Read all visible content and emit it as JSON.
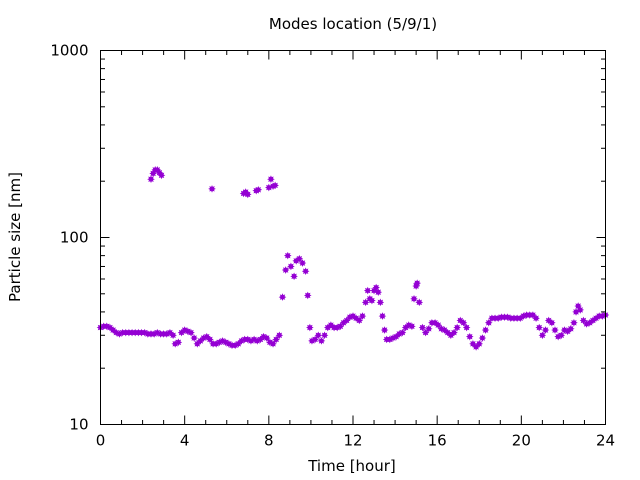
{
  "chart_data": {
    "type": "scatter",
    "title": "Modes location (5/9/1)",
    "xlabel": "Time [hour]",
    "ylabel": "Particle size [nm]",
    "xlim": [
      0,
      24
    ],
    "ylim": [
      10,
      1000
    ],
    "yscale": "log",
    "xticks": [
      "0",
      "4",
      "8",
      "12",
      "16",
      "20",
      "24"
    ],
    "yticks": [
      "10",
      "100",
      "1000"
    ],
    "marker_color": "#9400d3",
    "grid": false,
    "legend": "none",
    "points": [
      [
        0.0,
        33
      ],
      [
        0.15,
        33.5
      ],
      [
        0.3,
        33.5
      ],
      [
        0.45,
        33
      ],
      [
        0.6,
        32
      ],
      [
        0.75,
        31
      ],
      [
        0.9,
        30.5
      ],
      [
        1.05,
        31
      ],
      [
        1.2,
        31
      ],
      [
        1.35,
        31
      ],
      [
        1.5,
        31
      ],
      [
        1.65,
        31
      ],
      [
        1.8,
        31
      ],
      [
        1.95,
        31
      ],
      [
        2.1,
        31
      ],
      [
        2.25,
        30.5
      ],
      [
        2.4,
        30.5
      ],
      [
        2.55,
        30.5
      ],
      [
        2.7,
        31
      ],
      [
        2.85,
        30.5
      ],
      [
        3.0,
        30.5
      ],
      [
        3.15,
        30.5
      ],
      [
        3.3,
        31
      ],
      [
        3.45,
        30
      ],
      [
        3.55,
        27
      ],
      [
        3.7,
        27.5
      ],
      [
        3.85,
        31
      ],
      [
        4.0,
        32
      ],
      [
        4.15,
        31.5
      ],
      [
        4.3,
        31
      ],
      [
        4.45,
        29
      ],
      [
        4.6,
        27
      ],
      [
        4.75,
        28
      ],
      [
        4.9,
        29
      ],
      [
        5.05,
        29.5
      ],
      [
        5.2,
        28.5
      ],
      [
        5.35,
        27
      ],
      [
        5.5,
        27
      ],
      [
        5.65,
        27.5
      ],
      [
        5.8,
        28
      ],
      [
        5.95,
        27.5
      ],
      [
        6.1,
        27
      ],
      [
        6.25,
        26.5
      ],
      [
        6.4,
        26.5
      ],
      [
        6.55,
        27
      ],
      [
        6.7,
        28
      ],
      [
        6.85,
        28.5
      ],
      [
        7.0,
        28.5
      ],
      [
        7.15,
        28
      ],
      [
        7.3,
        28.5
      ],
      [
        7.45,
        28
      ],
      [
        7.6,
        28.5
      ],
      [
        7.75,
        29.5
      ],
      [
        7.9,
        29
      ],
      [
        8.05,
        27.5
      ],
      [
        8.2,
        27
      ],
      [
        8.35,
        28.5
      ],
      [
        8.5,
        30
      ],
      [
        8.65,
        48
      ],
      [
        8.8,
        67
      ],
      [
        8.9,
        80
      ],
      [
        9.05,
        70
      ],
      [
        9.2,
        62
      ],
      [
        9.3,
        75
      ],
      [
        9.45,
        77
      ],
      [
        9.6,
        73
      ],
      [
        9.75,
        66
      ],
      [
        9.85,
        49
      ],
      [
        9.95,
        33
      ],
      [
        10.05,
        28
      ],
      [
        10.2,
        28.5
      ],
      [
        10.35,
        30
      ],
      [
        10.5,
        28
      ],
      [
        10.65,
        30
      ],
      [
        10.8,
        33
      ],
      [
        10.95,
        34
      ],
      [
        11.1,
        33
      ],
      [
        11.25,
        33
      ],
      [
        11.4,
        33.5
      ],
      [
        11.55,
        35
      ],
      [
        11.7,
        36
      ],
      [
        11.85,
        37.5
      ],
      [
        12.0,
        38
      ],
      [
        12.15,
        37
      ],
      [
        12.3,
        36
      ],
      [
        12.45,
        38
      ],
      [
        12.6,
        45
      ],
      [
        12.7,
        52
      ],
      [
        12.8,
        47
      ],
      [
        12.9,
        46
      ],
      [
        13.0,
        52
      ],
      [
        13.1,
        54
      ],
      [
        13.2,
        51
      ],
      [
        13.3,
        45
      ],
      [
        13.4,
        38
      ],
      [
        13.5,
        32
      ],
      [
        13.6,
        28.5
      ],
      [
        13.75,
        28.5
      ],
      [
        13.9,
        29
      ],
      [
        14.05,
        29.5
      ],
      [
        14.2,
        30.5
      ],
      [
        14.35,
        31
      ],
      [
        14.5,
        33
      ],
      [
        14.65,
        34
      ],
      [
        14.8,
        33.5
      ],
      [
        14.9,
        47
      ],
      [
        15.0,
        55
      ],
      [
        15.05,
        57
      ],
      [
        15.15,
        45
      ],
      [
        15.3,
        33
      ],
      [
        15.45,
        31
      ],
      [
        15.6,
        32.5
      ],
      [
        15.75,
        35
      ],
      [
        15.9,
        35
      ],
      [
        16.05,
        34
      ],
      [
        16.2,
        32.5
      ],
      [
        16.35,
        32
      ],
      [
        16.5,
        31
      ],
      [
        16.65,
        30
      ],
      [
        16.8,
        31
      ],
      [
        16.95,
        33
      ],
      [
        17.1,
        36
      ],
      [
        17.25,
        35
      ],
      [
        17.4,
        33
      ],
      [
        17.55,
        29.5
      ],
      [
        17.7,
        27
      ],
      [
        17.85,
        26
      ],
      [
        18.0,
        27
      ],
      [
        18.15,
        29
      ],
      [
        18.3,
        32
      ],
      [
        18.45,
        35
      ],
      [
        18.6,
        37
      ],
      [
        18.75,
        37
      ],
      [
        18.9,
        37
      ],
      [
        19.05,
        37.5
      ],
      [
        19.2,
        37.5
      ],
      [
        19.35,
        37.5
      ],
      [
        19.5,
        37
      ],
      [
        19.65,
        37
      ],
      [
        19.8,
        37
      ],
      [
        19.95,
        37
      ],
      [
        20.1,
        38
      ],
      [
        20.25,
        38.5
      ],
      [
        20.4,
        38.5
      ],
      [
        20.55,
        38.5
      ],
      [
        20.7,
        37
      ],
      [
        20.85,
        33
      ],
      [
        21.0,
        30
      ],
      [
        21.15,
        32
      ],
      [
        21.3,
        36
      ],
      [
        21.45,
        35
      ],
      [
        21.6,
        32
      ],
      [
        21.75,
        29.5
      ],
      [
        21.9,
        30
      ],
      [
        22.05,
        32
      ],
      [
        22.2,
        31.5
      ],
      [
        22.35,
        32.5
      ],
      [
        22.5,
        35
      ],
      [
        22.6,
        40
      ],
      [
        22.7,
        43
      ],
      [
        22.8,
        41
      ],
      [
        22.95,
        36
      ],
      [
        23.1,
        34.5
      ],
      [
        23.25,
        35
      ],
      [
        23.4,
        36
      ],
      [
        23.55,
        37
      ],
      [
        23.7,
        38
      ],
      [
        23.85,
        38
      ],
      [
        24.0,
        38.5
      ],
      [
        2.4,
        205
      ],
      [
        2.5,
        220
      ],
      [
        2.6,
        230
      ],
      [
        2.7,
        230
      ],
      [
        2.8,
        222
      ],
      [
        2.9,
        215
      ],
      [
        5.3,
        182
      ],
      [
        6.8,
        172
      ],
      [
        6.9,
        175
      ],
      [
        7.0,
        170
      ],
      [
        7.4,
        178
      ],
      [
        7.5,
        180
      ],
      [
        8.0,
        185
      ],
      [
        8.1,
        205
      ],
      [
        8.2,
        188
      ],
      [
        8.3,
        190
      ]
    ]
  }
}
